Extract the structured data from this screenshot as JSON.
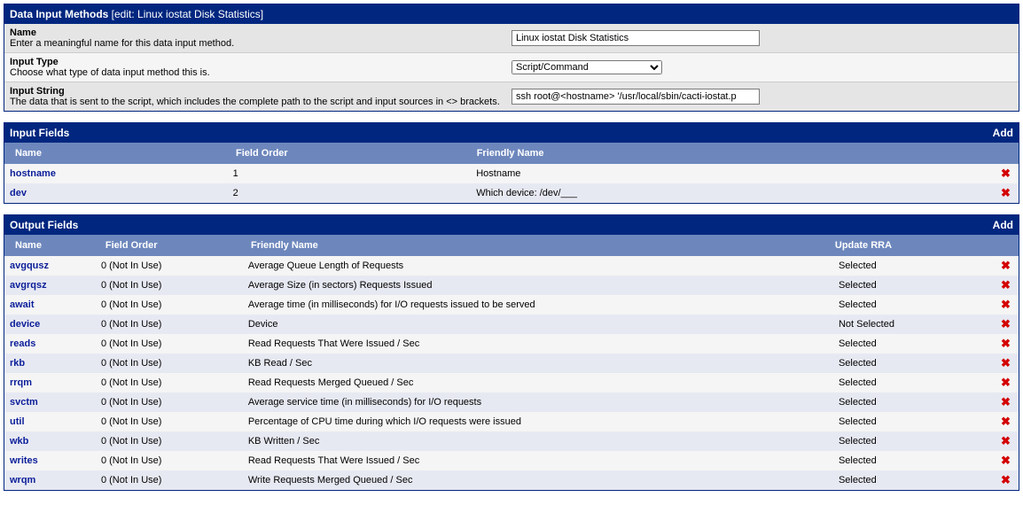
{
  "colors": {
    "header_bg": "#00267f",
    "header_fg": "#ffffff",
    "subheader_bg": "#6d87bd",
    "row_alt0": "#f5f5f5",
    "row_alt1": "#e7e9f2",
    "form_alt0": "#e5e5e5",
    "form_alt1": "#f5f5f5",
    "link": "#0b1e99",
    "delete": "#d40000"
  },
  "main": {
    "title": "Data Input Methods",
    "edit_suffix": "[edit: Linux iostat Disk Statistics]",
    "rows": [
      {
        "label": "Name",
        "desc": "Enter a meaningful name for this data input method.",
        "type": "text",
        "value": "Linux iostat Disk Statistics"
      },
      {
        "label": "Input Type",
        "desc": "Choose what type of data input method this is.",
        "type": "select",
        "value": "Script/Command"
      },
      {
        "label": "Input String",
        "desc": "The data that is sent to the script, which includes the complete path to the script and input sources in <> brackets.",
        "type": "text",
        "value": "ssh root@<hostname> '/usr/local/sbin/cacti-iostat.p"
      }
    ]
  },
  "input_fields": {
    "title": "Input Fields",
    "add_label": "Add",
    "headers": {
      "name": "Name",
      "order": "Field Order",
      "friendly": "Friendly Name"
    },
    "rows": [
      {
        "name": "hostname",
        "order": "1",
        "friendly": "Hostname"
      },
      {
        "name": "dev",
        "order": "2",
        "friendly": "Which device: /dev/___"
      }
    ]
  },
  "output_fields": {
    "title": "Output Fields",
    "add_label": "Add",
    "headers": {
      "name": "Name",
      "order": "Field Order",
      "friendly": "Friendly Name",
      "rra": "Update RRA"
    },
    "rows": [
      {
        "name": "avgqusz",
        "order": "0 (Not In Use)",
        "friendly": "Average Queue Length of Requests",
        "rra": "Selected"
      },
      {
        "name": "avgrqsz",
        "order": "0 (Not In Use)",
        "friendly": "Average Size (in sectors) Requests Issued",
        "rra": "Selected"
      },
      {
        "name": "await",
        "order": "0 (Not In Use)",
        "friendly": "Average time (in milliseconds) for I/O requests issued to be served",
        "rra": "Selected"
      },
      {
        "name": "device",
        "order": "0 (Not In Use)",
        "friendly": "Device",
        "rra": "Not Selected"
      },
      {
        "name": "reads",
        "order": "0 (Not In Use)",
        "friendly": "Read Requests That Were Issued / Sec",
        "rra": "Selected"
      },
      {
        "name": "rkb",
        "order": "0 (Not In Use)",
        "friendly": "KB Read / Sec",
        "rra": "Selected"
      },
      {
        "name": "rrqm",
        "order": "0 (Not In Use)",
        "friendly": "Read Requests Merged Queued / Sec",
        "rra": "Selected"
      },
      {
        "name": "svctm",
        "order": "0 (Not In Use)",
        "friendly": "Average service time (in milliseconds) for I/O requests",
        "rra": "Selected"
      },
      {
        "name": "util",
        "order": "0 (Not In Use)",
        "friendly": "Percentage of CPU time during which I/O requests were issued",
        "rra": "Selected"
      },
      {
        "name": "wkb",
        "order": "0 (Not In Use)",
        "friendly": "KB Written / Sec",
        "rra": "Selected"
      },
      {
        "name": "writes",
        "order": "0 (Not In Use)",
        "friendly": "Read Requests That Were Issued / Sec",
        "rra": "Selected"
      },
      {
        "name": "wrqm",
        "order": "0 (Not In Use)",
        "friendly": "Write Requests Merged Queued / Sec",
        "rra": "Selected"
      }
    ]
  },
  "glyphs": {
    "delete": "✖"
  }
}
